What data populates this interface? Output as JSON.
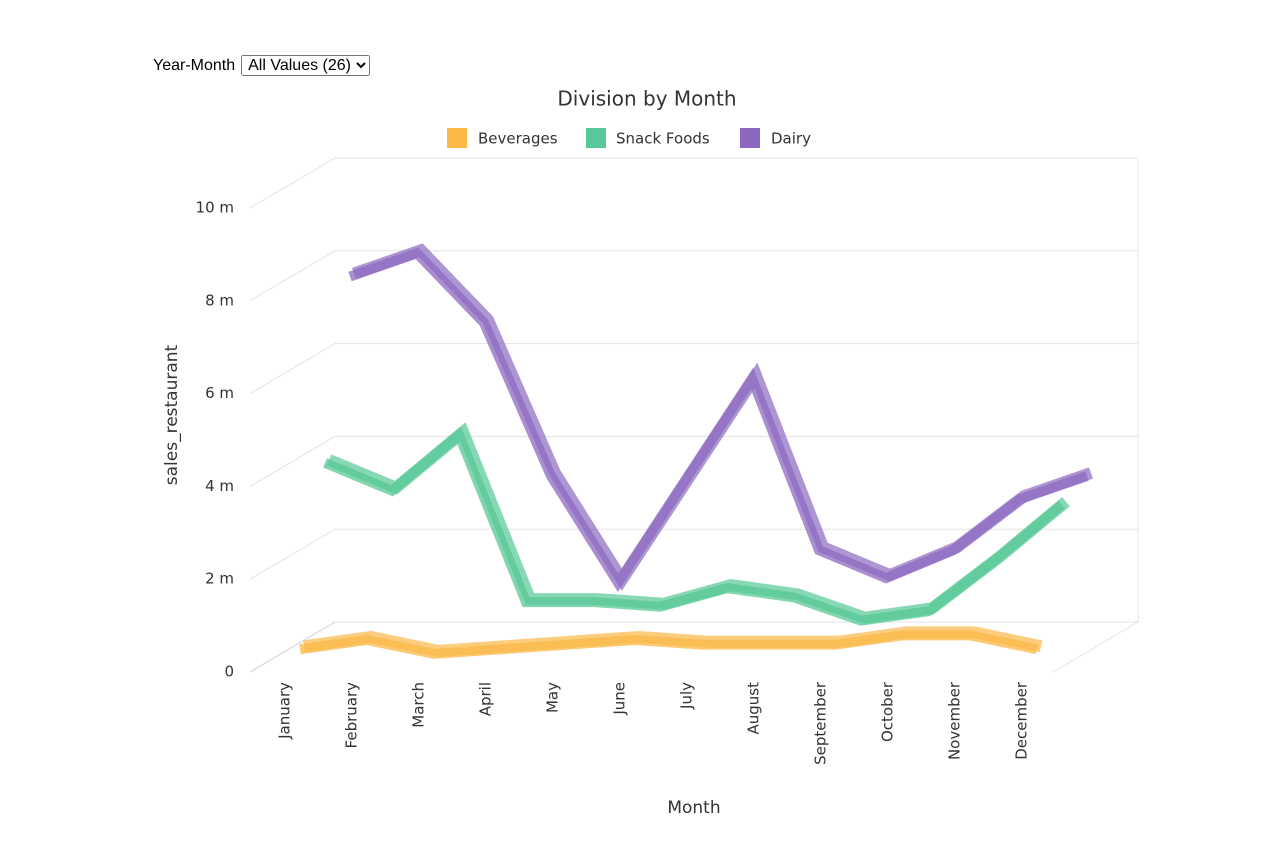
{
  "controls": {
    "filter_label": "Year-Month",
    "filter_value": "All Values (26)"
  },
  "chart_data": {
    "type": "line3d",
    "title": "Division by Month",
    "x_label": "Month",
    "y_label": "sales_restaurant",
    "categories": [
      "January",
      "February",
      "March",
      "April",
      "May",
      "June",
      "July",
      "August",
      "September",
      "October",
      "November",
      "December"
    ],
    "series": [
      {
        "name": "Beverages",
        "color": "#fbb847",
        "values": [
          0.3,
          0.5,
          0.2,
          0.3,
          0.4,
          0.5,
          0.4,
          0.4,
          0.4,
          0.6,
          0.6,
          0.3
        ]
      },
      {
        "name": "Snack Foods",
        "color": "#57c896",
        "values": [
          4.0,
          3.4,
          4.6,
          1.0,
          1.0,
          0.9,
          1.3,
          1.1,
          0.6,
          0.8,
          1.9,
          3.1
        ]
      },
      {
        "name": "Dairy",
        "color": "#8c69c0",
        "values": [
          7.7,
          8.2,
          6.7,
          3.4,
          1.1,
          3.3,
          5.5,
          1.8,
          1.2,
          1.8,
          2.9,
          3.4
        ]
      }
    ],
    "ylim": [
      0,
      10
    ],
    "yticks": [
      0,
      {
        "value": 2,
        "label": "2 m"
      },
      {
        "value": 4,
        "label": "4 m"
      },
      {
        "value": 6,
        "label": "6 m"
      },
      {
        "value": 8,
        "label": "8 m"
      },
      {
        "value": 10,
        "label": "10 m"
      }
    ],
    "grid": true,
    "legend": "top"
  }
}
